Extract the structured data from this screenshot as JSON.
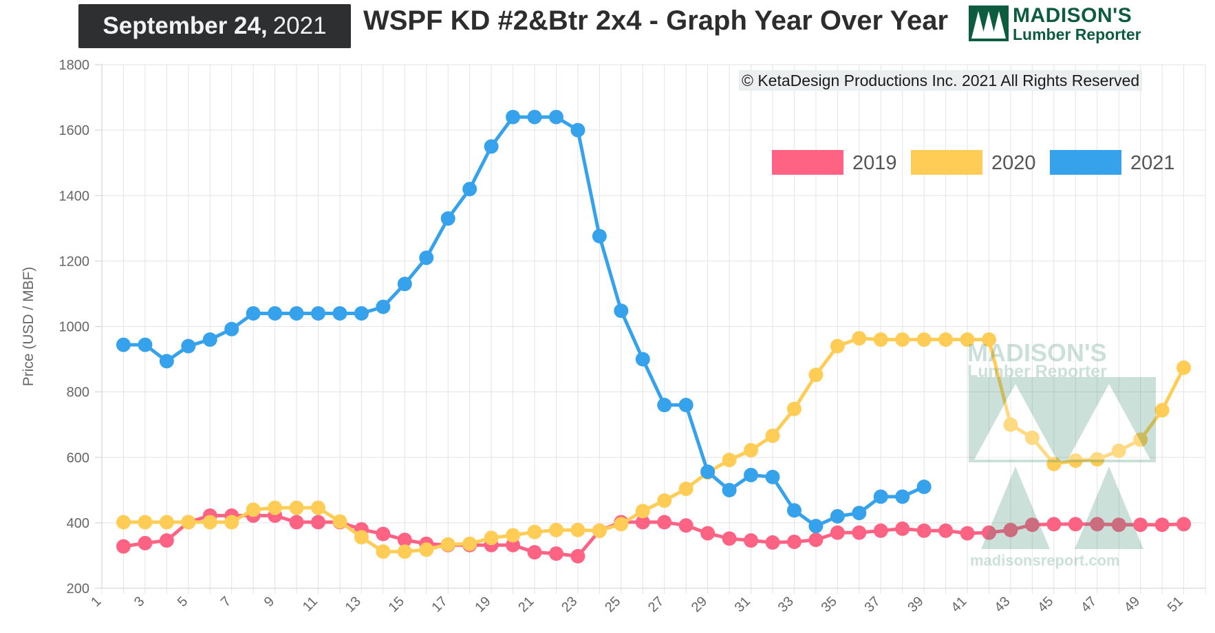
{
  "header": {
    "date_month_day": "September 24,",
    "date_year": "2021",
    "title": "WSPF KD #2&Btr 2x4 - Graph Year Over Year",
    "logo_line1": "MADISON'S",
    "logo_line2": "Lumber Reporter"
  },
  "copyright": "© KetaDesign Productions Inc. 2021 All Rights Reserved",
  "watermark": {
    "line1": "MADISON'S",
    "line2": "Lumber Reporter",
    "line3": "madisonsreport.com"
  },
  "colors": {
    "c2019": "#ff6384",
    "c2020": "#ffcd56",
    "c2021": "#36a2eb",
    "grid": "#e3e3e3",
    "tick_text": "#666666",
    "logo_green": "#0e5c3f"
  },
  "icons": [
    "maple-leaf-icon",
    "madisons-logo-icon"
  ],
  "chart_data": {
    "type": "line",
    "ylabel": "Price (USD / MBF)",
    "xlabel": "",
    "ylim": [
      200,
      1800
    ],
    "yticks": [
      200,
      400,
      600,
      800,
      1000,
      1200,
      1400,
      1600,
      1800
    ],
    "xlim": [
      1,
      52
    ],
    "xticks": [
      1,
      3,
      5,
      7,
      9,
      11,
      13,
      15,
      17,
      19,
      21,
      23,
      25,
      27,
      29,
      31,
      33,
      35,
      37,
      39,
      41,
      43,
      45,
      47,
      49,
      51
    ],
    "grid": true,
    "legend_position": "top-right",
    "x": [
      2,
      3,
      4,
      5,
      6,
      7,
      8,
      9,
      10,
      11,
      12,
      13,
      14,
      15,
      16,
      17,
      18,
      19,
      20,
      21,
      22,
      23,
      24,
      25,
      26,
      27,
      28,
      29,
      30,
      31,
      32,
      33,
      34,
      35,
      36,
      37,
      38,
      39,
      40,
      41,
      42,
      43,
      44,
      45,
      46,
      47,
      48,
      49,
      50,
      51
    ],
    "series": [
      {
        "name": "2019",
        "color": "#ff6384",
        "values": [
          328,
          338,
          346,
          402,
          422,
          422,
          422,
          422,
          402,
          402,
          402,
          380,
          366,
          348,
          336,
          332,
          332,
          332,
          332,
          310,
          306,
          298,
          376,
          402,
          402,
          402,
          392,
          368,
          352,
          346,
          340,
          342,
          348,
          370,
          370,
          376,
          382,
          376,
          376,
          368,
          370,
          378,
          394,
          396,
          396,
          396,
          394,
          394,
          394,
          396
        ]
      },
      {
        "name": "2020",
        "color": "#ffcd56",
        "values": [
          402,
          402,
          402,
          402,
          402,
          402,
          440,
          446,
          446,
          446,
          404,
          356,
          312,
          312,
          318,
          334,
          336,
          354,
          362,
          372,
          378,
          378,
          376,
          396,
          436,
          468,
          504,
          554,
          592,
          622,
          666,
          748,
          852,
          940,
          964,
          960,
          960,
          960,
          960,
          960,
          960,
          700,
          660,
          580,
          590,
          594,
          620,
          654,
          744,
          874
        ]
      },
      {
        "name": "2021",
        "color": "#36a2eb",
        "values": [
          944,
          944,
          894,
          940,
          960,
          992,
          1040,
          1040,
          1040,
          1040,
          1040,
          1040,
          1060,
          1130,
          1210,
          1330,
          1420,
          1550,
          1640,
          1640,
          1640,
          1600,
          1276,
          1048,
          900,
          760,
          760,
          556,
          500,
          546,
          540,
          438,
          390,
          420,
          430,
          480,
          480,
          510,
          null,
          null,
          null,
          null,
          null,
          null,
          null,
          null,
          null,
          null,
          null,
          null
        ]
      }
    ]
  }
}
